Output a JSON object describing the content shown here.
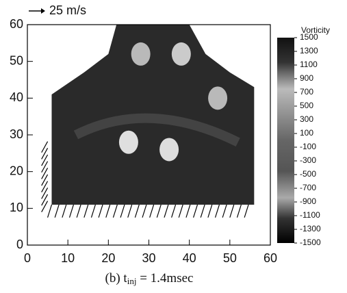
{
  "chart_data": {
    "type": "vector-field",
    "reference_label": "25 m/s",
    "colorbar_title": "Vorticity",
    "caption": {
      "prefix": "(b) t",
      "subscript": "inj",
      "suffix": " = 1.4msec"
    },
    "xlim": [
      0,
      60
    ],
    "ylim": [
      0,
      60
    ],
    "xticks": [
      0,
      10,
      20,
      30,
      40,
      50,
      60
    ],
    "yticks": [
      0,
      10,
      20,
      30,
      40,
      50,
      60
    ],
    "clim": [
      -1500,
      1500
    ],
    "cticks": [
      1500,
      1300,
      1100,
      900,
      700,
      500,
      300,
      100,
      -100,
      -300,
      -500,
      -700,
      -900,
      -1100,
      -1300,
      -1500
    ],
    "spots": {
      "x": [
        47,
        28,
        38,
        35,
        25
      ],
      "y": [
        40,
        52,
        52,
        26,
        28
      ],
      "values": [
        900,
        900,
        700,
        300,
        100
      ]
    }
  }
}
